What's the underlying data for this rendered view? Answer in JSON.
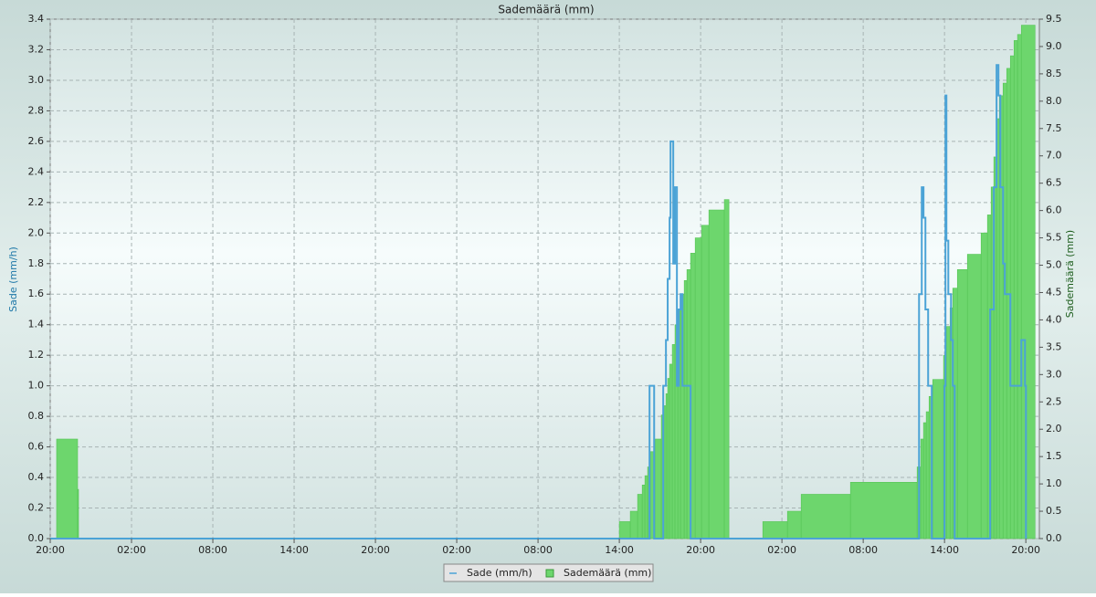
{
  "chart_data": {
    "type": "step",
    "title": "Sademäärä (mm)",
    "y_label": "Sade (mm/h)",
    "y2_label": "Sademäärä (mm)",
    "grid": true,
    "legend": "bottom",
    "xlim": [
      0,
      73
    ],
    "xticks": [
      {
        "value": 0,
        "label": "20:00"
      },
      {
        "value": 6,
        "label": "02:00"
      },
      {
        "value": 12,
        "label": "08:00"
      },
      {
        "value": 18,
        "label": "14:00"
      },
      {
        "value": 24,
        "label": "20:00"
      },
      {
        "value": 30,
        "label": "02:00"
      },
      {
        "value": 36,
        "label": "08:00"
      },
      {
        "value": 42,
        "label": "14:00"
      },
      {
        "value": 48,
        "label": "20:00"
      },
      {
        "value": 54,
        "label": "02:00"
      },
      {
        "value": 60,
        "label": "08:00"
      },
      {
        "value": 66,
        "label": "14:00"
      },
      {
        "value": 72,
        "label": "20:00"
      }
    ],
    "ylim": [
      0,
      3.4
    ],
    "yticks": [
      {
        "value": 0,
        "label": "0.0"
      },
      0.2,
      0.4,
      0.6,
      0.8,
      {
        "value": 1,
        "label": "1.0"
      },
      1.2,
      1.4,
      1.6,
      1.8,
      {
        "value": 2,
        "label": "2.0"
      },
      2.2,
      2.4,
      2.6,
      2.8,
      {
        "value": 3,
        "label": "3.0"
      },
      3.2,
      3.4
    ],
    "y2lim": [
      0,
      9.5
    ],
    "y2ticks": [
      {
        "value": 0,
        "label": "0.0"
      },
      0.5,
      {
        "value": 1,
        "label": "1.0"
      },
      1.5,
      {
        "value": 2,
        "label": "2.0"
      },
      2.5,
      {
        "value": 3,
        "label": "3.0"
      },
      3.5,
      {
        "value": 4,
        "label": "4.0"
      },
      4.5,
      {
        "value": 5,
        "label": "5.0"
      },
      5.5,
      {
        "value": 6,
        "label": "6.0"
      },
      6.5,
      {
        "value": 7,
        "label": "7.0"
      },
      7.5,
      {
        "value": 8,
        "label": "8.0"
      },
      8.5,
      {
        "value": 9,
        "label": "9.0"
      },
      9.5
    ],
    "series": [
      {
        "name": "Sade (mm/h)",
        "color": "#4ba3d6",
        "kind": "line",
        "x": [
          0,
          44.23,
          44.57,
          45.24,
          45.44,
          45.57,
          45.71,
          45.78,
          45.98,
          46.11,
          46.25,
          46.39,
          46.52,
          46.66,
          47.26,
          64.12,
          64.32,
          64.45,
          64.59,
          64.79,
          65.06,
          66.0,
          66.07,
          66.14,
          66.28,
          66.48,
          66.61,
          66.75,
          69.37,
          69.64,
          69.84,
          69.98,
          70.12,
          70.32,
          70.45,
          70.86,
          71.67,
          71.94,
          72.01
        ],
        "values": [
          0,
          1.0,
          0,
          1.0,
          1.3,
          1.7,
          2.1,
          2.6,
          1.8,
          2.3,
          1.0,
          1.5,
          1.6,
          1.0,
          0,
          1.6,
          2.3,
          2.1,
          1.5,
          1.0,
          0,
          1.0,
          2.9,
          1.95,
          1.6,
          1.3,
          1.0,
          0,
          1.5,
          2.3,
          3.1,
          2.9,
          2.3,
          1.8,
          1.6,
          1.0,
          1.3,
          1.0,
          0
        ]
      },
      {
        "name": "Sademäärä (mm)",
        "color": "#6dd66d",
        "kind": "area",
        "axis": "y2",
        "x": [
          0.47,
          2.02,
          2.09,
          42.0,
          42.81,
          43.35,
          43.69,
          43.89,
          44.09,
          44.29,
          44.63,
          45.1,
          45.3,
          45.44,
          45.57,
          45.71,
          45.91,
          46.11,
          46.32,
          46.52,
          46.79,
          46.99,
          47.26,
          47.6,
          48.07,
          48.61,
          49.75,
          50.09,
          52.59,
          54.41,
          55.42,
          59.06,
          63.98,
          64.25,
          64.45,
          64.65,
          64.86,
          65.13,
          65.93,
          66.14,
          66.41,
          66.61,
          66.95,
          67.69,
          68.7,
          69.17,
          69.44,
          69.64,
          69.84,
          70.05,
          70.32,
          70.59,
          70.86,
          71.13,
          71.39,
          71.67,
          72.68
        ],
        "values": [
          1.82,
          0.9,
          null,
          0.31,
          0.5,
          0.81,
          0.98,
          1.15,
          1.31,
          1.59,
          1.82,
          2.26,
          2.43,
          2.65,
          2.93,
          3.19,
          3.55,
          3.91,
          4.19,
          4.47,
          4.72,
          4.92,
          5.22,
          5.5,
          5.73,
          6.01,
          6.2,
          null,
          0.31,
          0.5,
          0.81,
          1.03,
          1.31,
          1.82,
          2.12,
          2.32,
          2.6,
          2.91,
          3.35,
          3.88,
          4.22,
          4.58,
          4.92,
          5.2,
          5.59,
          5.92,
          6.43,
          6.98,
          7.68,
          8.1,
          8.33,
          8.6,
          8.83,
          9.11,
          9.22,
          9.39,
          null
        ]
      }
    ]
  }
}
